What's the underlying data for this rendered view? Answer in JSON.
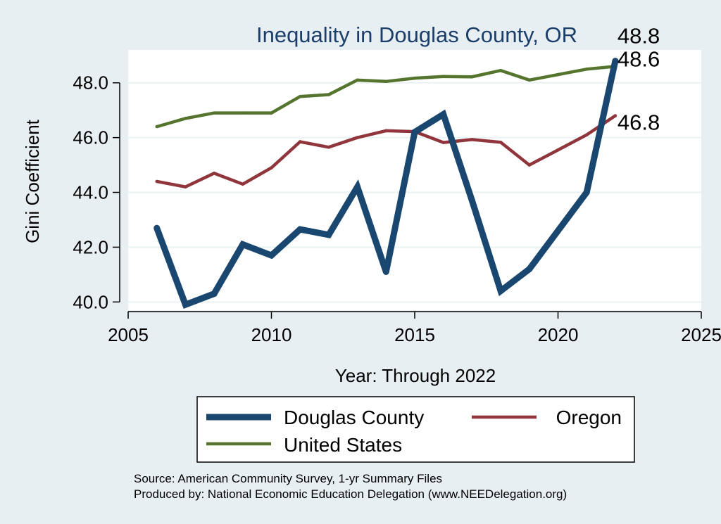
{
  "chart_data": {
    "type": "line",
    "title": "Inequality in Douglas County, OR",
    "xlabel": "Year: Through 2022",
    "ylabel": "Gini Coefficient",
    "xlim": [
      2005,
      2025
    ],
    "ylim": [
      39.7,
      49.2
    ],
    "x_ticks": [
      2005,
      2010,
      2015,
      2020,
      2025
    ],
    "y_ticks": [
      "40.0",
      "42.0",
      "44.0",
      "46.0",
      "48.0"
    ],
    "grid": true,
    "legend_position": "bottom",
    "x": [
      2006,
      2007,
      2008,
      2009,
      2010,
      2011,
      2012,
      2013,
      2014,
      2015,
      2016,
      2017,
      2018,
      2019,
      2020,
      2021,
      2022
    ],
    "series": [
      {
        "name": "Douglas County",
        "color": "#1a476f",
        "values": [
          42.7,
          39.9,
          40.3,
          42.1,
          41.7,
          42.65,
          42.45,
          44.2,
          41.1,
          46.2,
          46.85,
          43.7,
          40.4,
          41.2,
          42.6,
          44.0,
          48.8
        ],
        "end_label": "48.8"
      },
      {
        "name": "Oregon",
        "color": "#90353b",
        "values": [
          44.4,
          44.2,
          44.7,
          44.3,
          44.9,
          45.85,
          45.65,
          46.0,
          46.25,
          46.22,
          45.82,
          45.93,
          45.83,
          45.0,
          45.55,
          46.1,
          46.8
        ],
        "end_label": "46.8"
      },
      {
        "name": "United States",
        "color": "#55752f",
        "values": [
          46.4,
          46.7,
          46.9,
          46.9,
          46.9,
          47.5,
          47.57,
          48.1,
          48.05,
          48.17,
          48.23,
          48.22,
          48.45,
          48.1,
          48.3,
          48.5,
          48.6
        ],
        "end_label": "48.6"
      }
    ],
    "notes": [
      "Source: American Community Survey, 1-yr Summary Files",
      "Produced by: National Economic Education Delegation (www.NEEDelegation.org)"
    ]
  }
}
